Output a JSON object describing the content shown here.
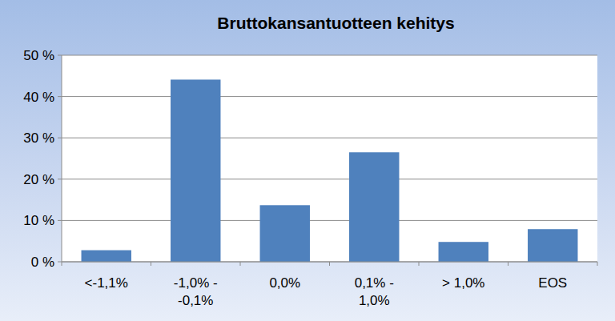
{
  "chart_data": {
    "type": "bar",
    "title": "Bruttokansantuotteen kehitys",
    "categories": [
      "<-1,1%",
      "-1,0% - -0,1%",
      "0,0%",
      "0,1% - 1,0%",
      "> 1,0%",
      "EOS"
    ],
    "values": [
      2.8,
      44.1,
      13.7,
      26.5,
      4.8,
      7.9
    ],
    "color": "#4f81bd",
    "ylim": [
      0,
      50
    ],
    "yticks": [
      {
        "value": 0,
        "label": "0 %"
      },
      {
        "value": 10,
        "label": "10 %"
      },
      {
        "value": 20,
        "label": "20 %"
      },
      {
        "value": 30,
        "label": "30 %"
      },
      {
        "value": 40,
        "label": "40 %"
      },
      {
        "value": 50,
        "label": "50 %"
      }
    ],
    "grid": true
  }
}
